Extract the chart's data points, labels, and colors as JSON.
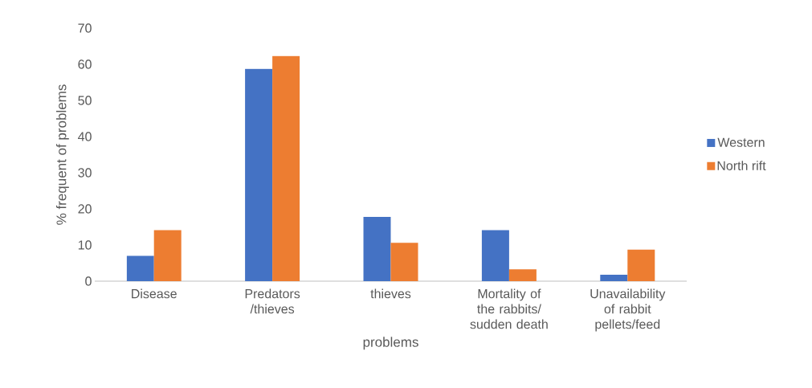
{
  "chart_data": {
    "type": "bar",
    "xlabel": "problems",
    "ylabel": "% frequent of problems",
    "categories": [
      "Disease",
      "Predators /thieves",
      "thieves",
      "Mortality of the rabbits/ sudden death",
      "Unavailability of rabbit pellets/feed"
    ],
    "series": [
      {
        "name": "Western",
        "color": "#4472c4",
        "values": [
          7,
          58.7,
          17.8,
          14.1,
          1.8
        ]
      },
      {
        "name": "North rift",
        "color": "#ed7d31",
        "values": [
          14.1,
          62.3,
          10.6,
          3.3,
          8.7
        ]
      }
    ],
    "ylim": [
      0,
      70
    ],
    "yticks": [
      0,
      10,
      20,
      30,
      40,
      50,
      60,
      70
    ],
    "legend": "right"
  }
}
